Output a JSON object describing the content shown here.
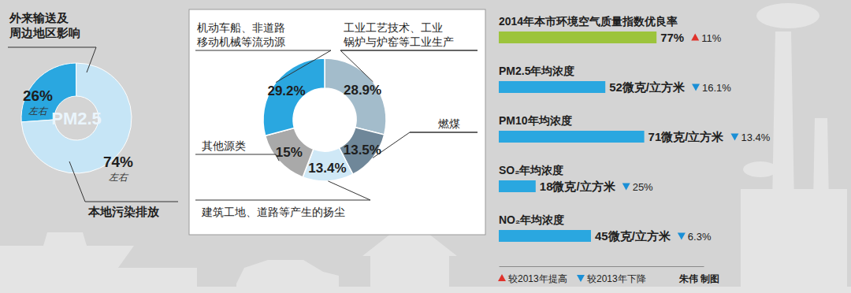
{
  "chart_data": [
    {
      "type": "donut",
      "categories": [
        "外来输送及\n周边地区影响",
        "本地污染排放"
      ],
      "values": [
        26,
        74
      ],
      "value_labels": [
        "26%",
        "74%"
      ],
      "value_notes": [
        "左右",
        "左右"
      ],
      "center_label": "PM2.5",
      "colors": [
        "#2aa7e0",
        "#c6e5f6"
      ],
      "data_labels": true
    },
    {
      "type": "donut",
      "categories": [
        "工业工艺技术、工业\n锅炉与炉窑等工业生产",
        "燃煤",
        "建筑工地、道路等产生的扬尘",
        "其他源类",
        "机动车船、非道路\n移动机械等流动源"
      ],
      "values": [
        28.9,
        13.5,
        13.4,
        15,
        29.2
      ],
      "value_labels": [
        "28.9%",
        "13.5%",
        "13.4%",
        "15%",
        "29.2%"
      ],
      "colors": [
        "#a3bccb",
        "#6f8799",
        "#cfe8f6",
        "#a9a9a9",
        "#2aa7e0"
      ],
      "data_labels": true
    },
    {
      "type": "bar",
      "orientation": "horizontal",
      "categories": [
        "2014年本市环境空气质量指数优良率",
        "PM2.5年均浓度",
        "PM10年均浓度",
        "SO₂年均浓度",
        "NO₂年均浓度"
      ],
      "values": [
        77,
        52,
        71,
        18,
        45
      ],
      "value_labels": [
        "77%",
        "52微克/立方米",
        "71微克/立方米",
        "18微克/立方米",
        "45微克/立方米"
      ],
      "colors": [
        "#9cc43c",
        "#2aa7e0",
        "#2aa7e0",
        "#2aa7e0",
        "#2aa7e0"
      ],
      "xlim": [
        0,
        100
      ],
      "xticks": [],
      "data_labels": true,
      "change": {
        "values": [
          11,
          -16.1,
          -13.4,
          -25,
          -6.3
        ],
        "value_labels": [
          "11%",
          "16.1%",
          "13.4%",
          "25%",
          "6.3%"
        ]
      },
      "change_legend": [
        {
          "name": "较2013年提高",
          "color": "#e0322b"
        },
        {
          "name": "较2013年下降",
          "color": "#1a8fd6"
        }
      ],
      "credit": "朱伟 制图"
    }
  ]
}
